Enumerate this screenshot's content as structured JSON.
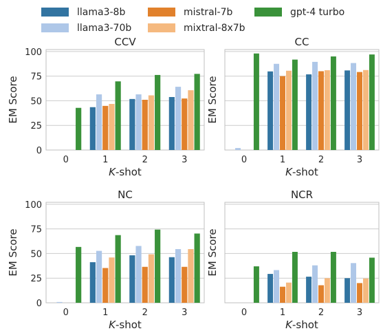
{
  "legend": {
    "entries": [
      {
        "name": "llama3-8b",
        "color": "#3274a1"
      },
      {
        "name": "llama3-70b",
        "color": "#aec7e8"
      },
      {
        "name": "mistral-7b",
        "color": "#e1812c"
      },
      {
        "name": "mixtral-8x7b",
        "color": "#f5b97f"
      },
      {
        "name": "gpt-4 turbo",
        "color": "#3a923a"
      }
    ]
  },
  "chart_data": [
    {
      "type": "bar",
      "title": "CCV",
      "xlabel_prefix": "K",
      "xlabel_suffix": "-shot",
      "ylabel": "EM Score",
      "categories": [
        "0",
        "1",
        "2",
        "3"
      ],
      "ylim": [
        0,
        102
      ],
      "yticks": [
        0,
        25,
        50,
        75,
        100
      ],
      "show_ytick_labels": true,
      "grid": "horizontal",
      "series": [
        {
          "name": "llama3-8b",
          "values": [
            0,
            43.5,
            51.8,
            53.8
          ]
        },
        {
          "name": "llama3-70b",
          "values": [
            0,
            56.5,
            56.5,
            64.2
          ]
        },
        {
          "name": "mistral-7b",
          "values": [
            0,
            44.8,
            51.0,
            52.3
          ]
        },
        {
          "name": "mixtral-8x7b",
          "values": [
            0,
            46.8,
            55.5,
            60.7
          ]
        },
        {
          "name": "gpt-4 turbo",
          "values": [
            42.8,
            69.7,
            76.2,
            77.3
          ]
        }
      ]
    },
    {
      "type": "bar",
      "title": "CC",
      "xlabel_prefix": "K",
      "xlabel_suffix": "-shot",
      "ylabel": "EM Score",
      "categories": [
        "0",
        "1",
        "2",
        "3"
      ],
      "ylim": [
        0,
        102
      ],
      "yticks": [
        0,
        25,
        50,
        75,
        100
      ],
      "show_ytick_labels": false,
      "grid": "horizontal",
      "series": [
        {
          "name": "llama3-8b",
          "values": [
            0,
            79.8,
            76.8,
            80.8
          ]
        },
        {
          "name": "llama3-70b",
          "values": [
            2.0,
            87.5,
            89.5,
            88.3
          ]
        },
        {
          "name": "mistral-7b",
          "values": [
            0,
            75.0,
            80.0,
            79.2
          ]
        },
        {
          "name": "mixtral-8x7b",
          "values": [
            0,
            80.5,
            81.0,
            81.2
          ]
        },
        {
          "name": "gpt-4 turbo",
          "values": [
            98.0,
            91.8,
            95.0,
            97.0
          ]
        }
      ]
    },
    {
      "type": "bar",
      "title": "NC",
      "xlabel_prefix": "K",
      "xlabel_suffix": "-shot",
      "ylabel": "EM Score",
      "categories": [
        "0",
        "1",
        "2",
        "3"
      ],
      "ylim": [
        0,
        102
      ],
      "yticks": [
        0,
        25,
        50,
        75,
        100
      ],
      "show_ytick_labels": true,
      "grid": "horizontal",
      "series": [
        {
          "name": "llama3-8b",
          "values": [
            0,
            41.2,
            48.2,
            46.3
          ]
        },
        {
          "name": "llama3-70b",
          "values": [
            0.8,
            52.7,
            57.7,
            54.5
          ]
        },
        {
          "name": "mistral-7b",
          "values": [
            0,
            35.3,
            36.5,
            36.5
          ]
        },
        {
          "name": "mixtral-8x7b",
          "values": [
            0,
            46.0,
            49.2,
            54.5
          ]
        },
        {
          "name": "gpt-4 turbo",
          "values": [
            56.7,
            68.7,
            74.3,
            70.3
          ]
        }
      ]
    },
    {
      "type": "bar",
      "title": "NCR",
      "xlabel_prefix": "K",
      "xlabel_suffix": "-shot",
      "ylabel": "EM Score",
      "categories": [
        "0",
        "1",
        "2",
        "3"
      ],
      "ylim": [
        0,
        102
      ],
      "yticks": [
        0,
        25,
        50,
        75,
        100
      ],
      "show_ytick_labels": false,
      "grid": "horizontal",
      "series": [
        {
          "name": "llama3-8b",
          "values": [
            0,
            29.3,
            26.5,
            25.0
          ]
        },
        {
          "name": "llama3-70b",
          "values": [
            0,
            33.2,
            38.0,
            40.3
          ]
        },
        {
          "name": "mistral-7b",
          "values": [
            0,
            16.3,
            17.8,
            20.0
          ]
        },
        {
          "name": "mixtral-8x7b",
          "values": [
            0,
            20.5,
            25.0,
            24.7
          ]
        },
        {
          "name": "gpt-4 turbo",
          "values": [
            37.0,
            51.7,
            51.7,
            45.8
          ]
        }
      ]
    }
  ]
}
